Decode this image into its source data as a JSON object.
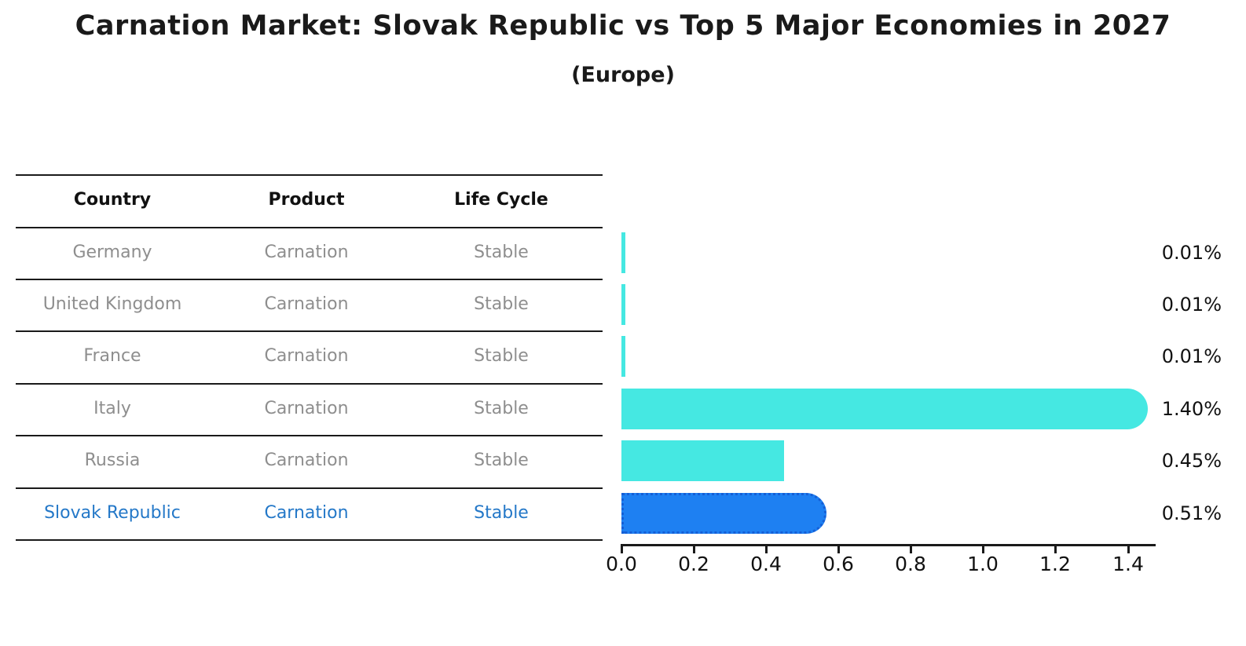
{
  "title": "Carnation Market: Slovak Republic vs Top 5 Major Economies in 2027",
  "subtitle": "(Europe)",
  "table": {
    "headers": {
      "country": "Country",
      "product": "Product",
      "life_cycle": "Life Cycle"
    },
    "rows": [
      {
        "country": "Germany",
        "product": "Carnation",
        "life_cycle": "Stable",
        "value_label": "0.01%"
      },
      {
        "country": "United Kingdom",
        "product": "Carnation",
        "life_cycle": "Stable",
        "value_label": "0.01%"
      },
      {
        "country": "France",
        "product": "Carnation",
        "life_cycle": "Stable",
        "value_label": "0.01%"
      },
      {
        "country": "Italy",
        "product": "Carnation",
        "life_cycle": "Stable",
        "value_label": "1.40%"
      },
      {
        "country": "Russia",
        "product": "Carnation",
        "life_cycle": "Stable",
        "value_label": "0.45%"
      },
      {
        "country": "Slovak Republic",
        "product": "Carnation",
        "life_cycle": "Stable",
        "value_label": "0.51%"
      }
    ]
  },
  "chart_data": {
    "type": "bar",
    "orientation": "horizontal",
    "title": "Carnation Market: Slovak Republic vs Top 5 Major Economies in 2027",
    "subtitle": "(Europe)",
    "categories": [
      "Germany",
      "United Kingdom",
      "France",
      "Italy",
      "Russia",
      "Slovak Republic"
    ],
    "values": [
      0.01,
      0.01,
      0.01,
      1.4,
      0.45,
      0.51
    ],
    "value_labels": [
      "0.01%",
      "0.01%",
      "0.01%",
      "1.40%",
      "0.45%",
      "0.51%"
    ],
    "highlight_category": "Slovak Republic",
    "xlim": [
      0.0,
      1.45
    ],
    "x_ticks": [
      0.0,
      0.2,
      0.4,
      0.6,
      0.8,
      1.0,
      1.2,
      1.4
    ],
    "x_tick_labels": [
      "0.0",
      "0.2",
      "0.4",
      "0.6",
      "0.8",
      "1.0",
      "1.2",
      "1.4"
    ],
    "grid": false,
    "legend": false,
    "colors": {
      "bar_default": "#45e8e2",
      "bar_highlight": "#1e80f2",
      "bar_highlight_border": "#155fd6",
      "highlight_text": "#2478c8",
      "row_text": "#8e8e8e",
      "header_text": "#111111",
      "value_text": "#111111",
      "axis": "#1a1a1a"
    }
  }
}
